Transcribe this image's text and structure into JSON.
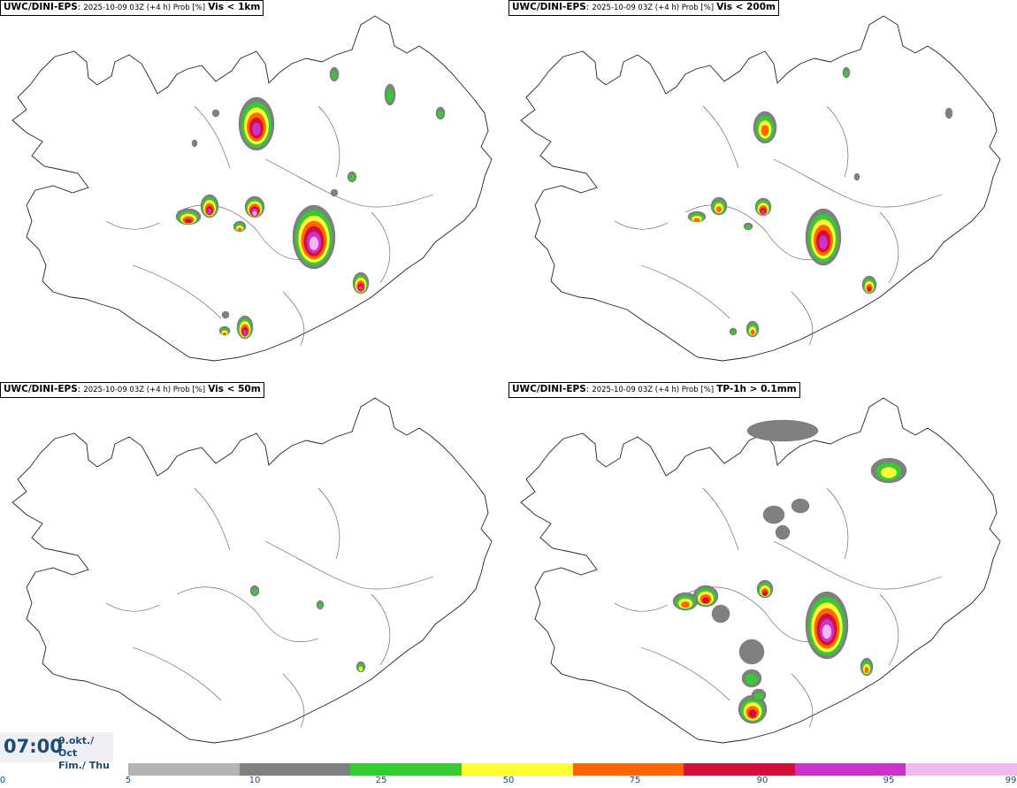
{
  "panels": [
    {
      "source": "UWC/DINI-EPS",
      "info": "2025-10-09 03Z (+4 h) Prob [%]",
      "variable": "Vis < 1km"
    },
    {
      "source": "UWC/DINI-EPS",
      "info": "2025-10-09 03Z (+4 h) Prob [%]",
      "variable": "Vis < 200m"
    },
    {
      "source": "UWC/DINI-EPS",
      "info": "2025-10-09 03Z (+4 h) Prob [%]",
      "variable": "Vis < 50m"
    },
    {
      "source": "UWC/DINI-EPS",
      "info": "2025-10-09 03Z (+4 h) Prob [%]",
      "variable": "TP-1h > 0.1mm"
    }
  ],
  "time": {
    "clock": "07:00",
    "date": "9.okt./ Oct",
    "day": "Fim./ Thu"
  },
  "colorbar": {
    "ticks": [
      "0",
      "5",
      "10",
      "25",
      "50",
      "75",
      "90",
      "95",
      "99"
    ],
    "colors": [
      "#b4b4b4",
      "#808080",
      "#33cc33",
      "#ffff33",
      "#ff6600",
      "#d40f3c",
      "#cc33cc",
      "#f2b8f2"
    ]
  }
}
